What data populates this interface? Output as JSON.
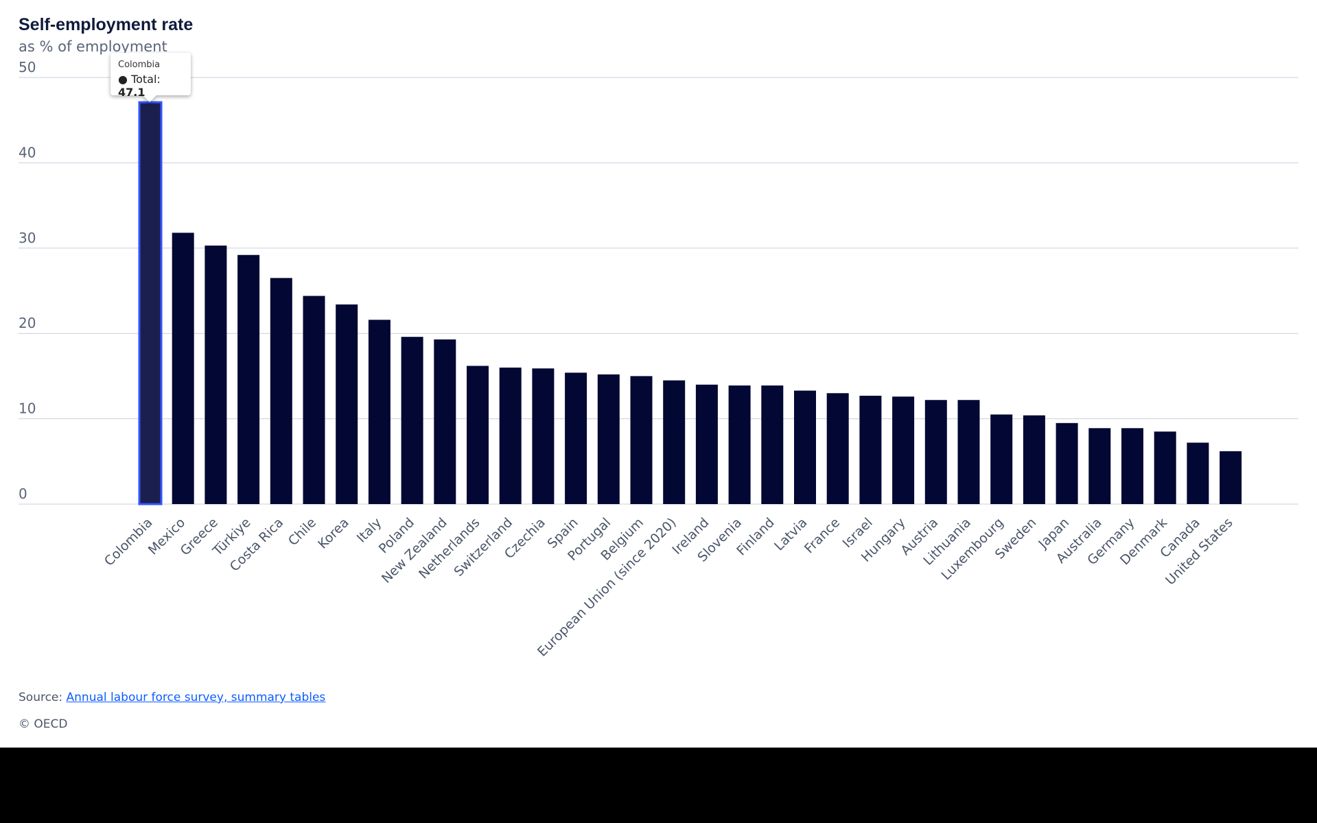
{
  "chart_data": {
    "type": "bar",
    "title": "Self-employment rate",
    "subtitle": "as % of employment",
    "xlabel": "",
    "ylabel": "",
    "ylim": [
      0,
      50
    ],
    "yticks": [
      0,
      10,
      20,
      30,
      40,
      50
    ],
    "grid": true,
    "bar_color": "#020833",
    "highlight_color": "#1b1f4e",
    "highlight_border": "#3355ff",
    "categories": [
      "Colombia",
      "Mexico",
      "Greece",
      "Türkiye",
      "Costa Rica",
      "Chile",
      "Korea",
      "Italy",
      "Poland",
      "New Zealand",
      "Netherlands",
      "Switzerland",
      "Czechia",
      "Spain",
      "Portugal",
      "Belgium",
      "European Union (since 2020)",
      "Ireland",
      "Slovenia",
      "Finland",
      "Latvia",
      "France",
      "Israel",
      "Hungary",
      "Austria",
      "Lithuania",
      "Luxembourg",
      "Sweden",
      "Japan",
      "Australia",
      "Germany",
      "Denmark",
      "Canada",
      "United States"
    ],
    "values": [
      47.1,
      31.8,
      30.3,
      29.2,
      26.5,
      24.4,
      23.4,
      21.6,
      19.6,
      19.3,
      16.2,
      16.0,
      15.9,
      15.4,
      15.2,
      15.0,
      14.5,
      14.0,
      13.9,
      13.9,
      13.3,
      13.0,
      12.7,
      12.6,
      12.2,
      12.2,
      10.5,
      10.4,
      9.5,
      8.9,
      8.9,
      8.5,
      7.2,
      6.2
    ],
    "series": [
      {
        "name": "Total"
      }
    ]
  },
  "tooltip": {
    "country": "Colombia",
    "label": "Total:",
    "value": "47.1"
  },
  "footer": {
    "source_label": "Source:",
    "source_link": "Annual labour force survey, summary tables",
    "copyright": "© OECD"
  }
}
